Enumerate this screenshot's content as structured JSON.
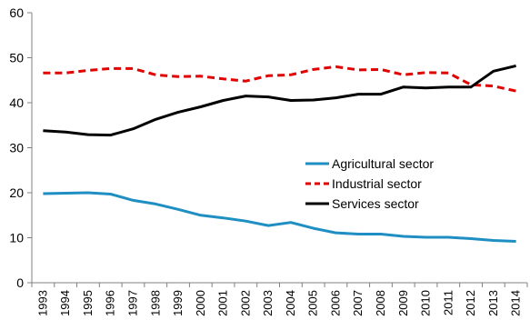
{
  "chart_data": {
    "type": "line",
    "title": "",
    "xlabel": "",
    "ylabel": "",
    "ylim": [
      0,
      60
    ],
    "yticks": [
      0,
      10,
      20,
      30,
      40,
      50,
      60
    ],
    "grid": false,
    "legend_position": "right",
    "x": [
      "1993",
      "1994",
      "1995",
      "1996",
      "1997",
      "1998",
      "1999",
      "2000",
      "2001",
      "2002",
      "2003",
      "2004",
      "2005",
      "2006",
      "2007",
      "2008",
      "2009",
      "2010",
      "2011",
      "2012",
      "2013",
      "2014"
    ],
    "series": [
      {
        "name": "Agricultural sector",
        "color": "#1f8fc3",
        "style": "solid",
        "values": [
          19.8,
          19.9,
          20.0,
          19.7,
          18.3,
          17.5,
          16.3,
          15.0,
          14.4,
          13.7,
          12.7,
          13.4,
          12.1,
          11.1,
          10.8,
          10.8,
          10.3,
          10.1,
          10.1,
          9.8,
          9.4,
          9.2
        ]
      },
      {
        "name": "Industrial sector",
        "color": "#e00000",
        "style": "dashed",
        "values": [
          46.6,
          46.6,
          47.2,
          47.6,
          47.6,
          46.2,
          45.8,
          45.9,
          45.3,
          44.8,
          46.0,
          46.2,
          47.4,
          48.0,
          47.3,
          47.4,
          46.2,
          46.7,
          46.6,
          44.0,
          43.7,
          42.6
        ]
      },
      {
        "name": "Services sector",
        "color": "#000000",
        "style": "solid",
        "values": [
          33.8,
          33.5,
          32.9,
          32.8,
          34.2,
          36.3,
          37.9,
          39.1,
          40.5,
          41.5,
          41.3,
          40.5,
          40.6,
          41.1,
          41.9,
          41.9,
          43.5,
          43.3,
          43.5,
          43.5,
          47.0,
          48.2
        ]
      }
    ]
  }
}
